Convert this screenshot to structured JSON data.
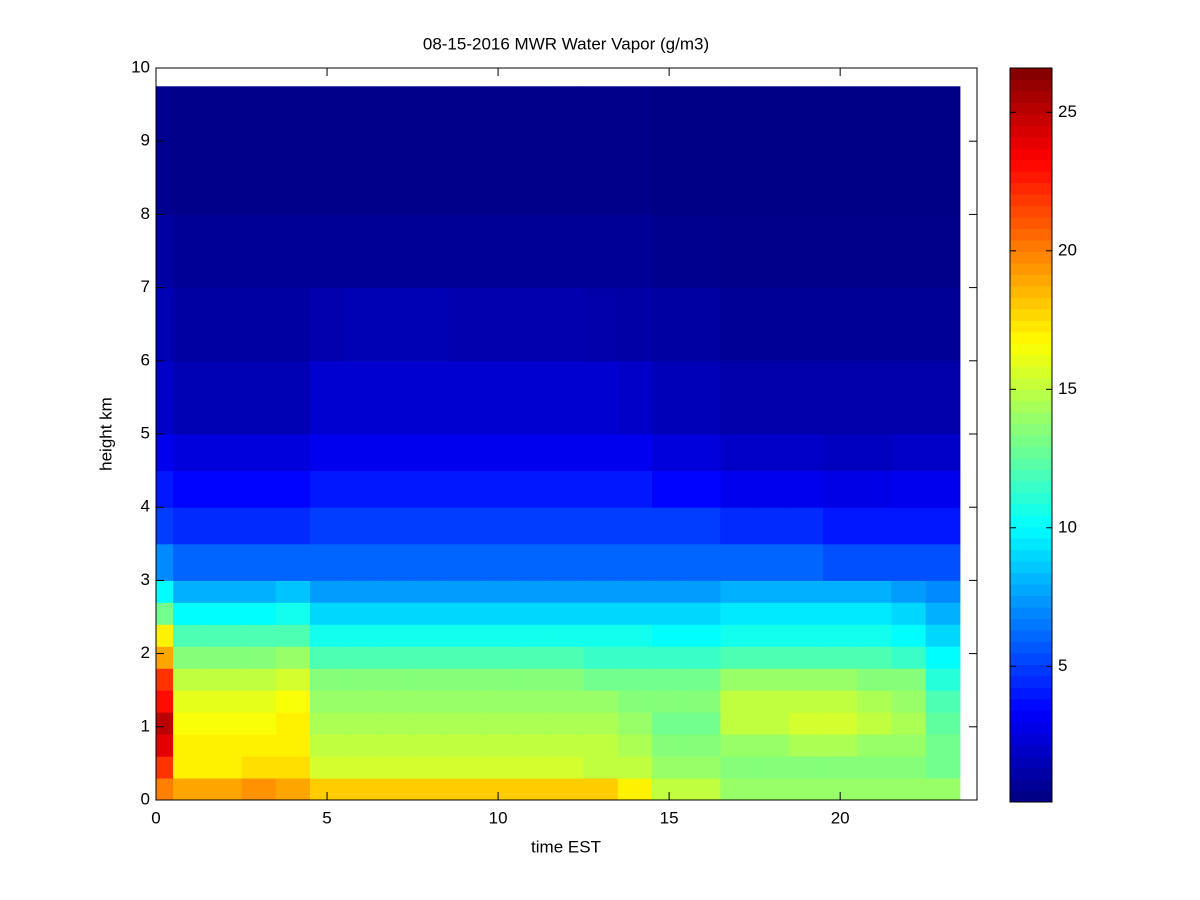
{
  "chart_data": {
    "type": "heatmap",
    "title": "08-15-2016 MWR Water Vapor (g/m3)",
    "x_label": "time EST",
    "y_label": "height km",
    "x_edges": [
      0,
      0.5,
      1.5,
      2.5,
      3.5,
      4.5,
      5.5,
      6.5,
      7.5,
      8.5,
      9.5,
      10.5,
      11.5,
      12.5,
      13.5,
      14.5,
      15.5,
      16.5,
      17.5,
      18.5,
      19.5,
      20.5,
      21.5,
      22.5,
      23.5
    ],
    "y_edges": [
      0,
      0.3,
      0.6,
      0.9,
      1.2,
      1.5,
      1.8,
      2.1,
      2.4,
      2.7,
      3,
      3.5,
      4,
      4.5,
      5,
      6,
      7,
      8,
      9.75
    ],
    "z": [
      [
        20,
        19,
        19,
        19.5,
        19,
        18,
        18,
        18,
        18,
        18,
        18,
        18,
        18,
        18,
        17,
        15,
        15,
        14,
        14,
        14,
        14,
        14,
        14,
        14
      ],
      [
        22,
        17,
        17,
        17.5,
        17.5,
        15.5,
        15.5,
        15.5,
        15.5,
        15.5,
        15.5,
        15.5,
        15.5,
        15,
        15,
        14,
        14,
        13.5,
        13.5,
        13.5,
        13.5,
        13.5,
        13.5,
        13
      ],
      [
        24,
        17,
        17,
        17,
        17,
        15,
        15,
        15,
        15,
        15,
        15,
        15,
        15,
        15,
        14.5,
        13.5,
        13.5,
        14,
        14,
        14.5,
        14.5,
        14,
        14,
        13
      ],
      [
        25,
        16.5,
        16.5,
        16.5,
        17,
        14.5,
        14.5,
        14.5,
        14.5,
        14.5,
        14.5,
        14.5,
        14.5,
        14.5,
        14,
        13,
        13,
        15,
        15,
        15.5,
        15.5,
        15,
        14.5,
        12.5
      ],
      [
        23,
        16,
        16,
        16,
        16.5,
        14,
        14,
        14,
        14,
        14,
        14,
        14,
        14,
        14,
        13.5,
        13.5,
        13.5,
        15,
        15,
        15,
        15,
        14.5,
        14,
        12
      ],
      [
        22,
        15,
        15,
        15,
        15.5,
        13.5,
        13.5,
        13.5,
        13.5,
        13.5,
        13.5,
        13.5,
        13.5,
        13,
        13,
        13,
        13,
        14,
        14,
        14,
        14,
        13.5,
        13.5,
        11
      ],
      [
        19,
        13.5,
        13.5,
        13.5,
        14,
        12,
        12,
        12,
        12,
        12,
        12,
        12,
        12,
        11.5,
        11.5,
        11.5,
        11.5,
        12,
        12,
        12,
        12,
        12,
        11.5,
        10
      ],
      [
        17,
        12,
        12,
        12,
        12,
        10.5,
        10.5,
        10.5,
        10.5,
        10.5,
        10.5,
        10.5,
        10.5,
        10.5,
        10.5,
        10,
        10,
        10.5,
        10.5,
        10.5,
        10.5,
        10.5,
        10,
        9
      ],
      [
        13,
        10,
        10,
        10,
        10.5,
        9,
        9,
        9,
        9,
        9,
        9,
        9,
        9,
        9,
        9,
        9,
        9,
        9.5,
        9.5,
        9.5,
        9.5,
        9.5,
        9,
        8
      ],
      [
        10,
        8,
        8,
        8,
        8.5,
        7.5,
        7.5,
        7.5,
        7.5,
        7.5,
        7.5,
        7.5,
        7.5,
        7.5,
        7.5,
        7.5,
        7.5,
        8,
        8,
        8,
        8,
        8,
        7.5,
        7
      ],
      [
        7,
        6,
        6,
        6,
        6,
        6,
        6,
        6,
        6,
        6,
        6,
        6,
        6,
        6,
        6,
        6,
        6,
        6,
        6,
        6,
        5.5,
        5.5,
        5.5,
        5.5
      ],
      [
        5,
        4.5,
        4.5,
        4.5,
        4.5,
        5,
        5,
        5,
        5,
        5,
        5,
        5,
        5,
        5,
        5,
        5,
        5,
        4.5,
        4.5,
        4.5,
        4,
        4,
        4,
        4
      ],
      [
        4,
        3.5,
        3.5,
        3.5,
        3.5,
        4,
        4,
        4,
        4,
        4,
        4,
        4,
        4,
        4,
        4,
        3.5,
        3.5,
        3,
        3,
        3,
        2.8,
        2.8,
        3,
        3
      ],
      [
        3,
        2.5,
        2.5,
        2.5,
        2.5,
        3,
        3,
        3,
        3,
        3,
        3,
        3,
        3,
        3,
        3,
        2.5,
        2.5,
        2,
        2,
        2,
        1.8,
        1.8,
        2,
        2
      ],
      [
        2,
        1.5,
        1.5,
        1.5,
        1.5,
        2.2,
        2.2,
        2.2,
        2.2,
        2.2,
        2.2,
        2.2,
        2.2,
        2.2,
        2,
        1.6,
        1.6,
        1.2,
        1.2,
        1.2,
        1.2,
        1.2,
        1.2,
        1.2
      ],
      [
        1.5,
        1,
        1,
        1,
        1,
        1.3,
        1.5,
        1.5,
        1.5,
        1.3,
        1.3,
        1.3,
        1.3,
        1.2,
        1.1,
        1,
        1,
        0.7,
        0.7,
        0.7,
        0.7,
        0.7,
        0.7,
        0.7
      ],
      [
        1,
        0.7,
        0.7,
        0.7,
        0.7,
        0.7,
        0.7,
        0.7,
        0.7,
        0.7,
        0.7,
        0.7,
        0.7,
        0.7,
        0.7,
        0.5,
        0.5,
        0.4,
        0.4,
        0.4,
        0.4,
        0.4,
        0.4,
        0.4
      ],
      [
        0.5,
        0.4,
        0.4,
        0.4,
        0.4,
        0.4,
        0.4,
        0.4,
        0.4,
        0.4,
        0.4,
        0.4,
        0.4,
        0.4,
        0.4,
        0.3,
        0.3,
        0.3,
        0.3,
        0.3,
        0.3,
        0.3,
        0.3,
        0.3
      ]
    ],
    "colormap": "jet",
    "xlim": [
      0,
      24
    ],
    "xticks": [
      0,
      5,
      10,
      15,
      20
    ],
    "ylim": [
      0,
      10
    ],
    "yticks": [
      0,
      1,
      2,
      3,
      4,
      5,
      6,
      7,
      8,
      9,
      10
    ],
    "clim": [
      0.1,
      26.6
    ],
    "cticks": [
      5,
      10,
      15,
      20,
      25
    ]
  }
}
